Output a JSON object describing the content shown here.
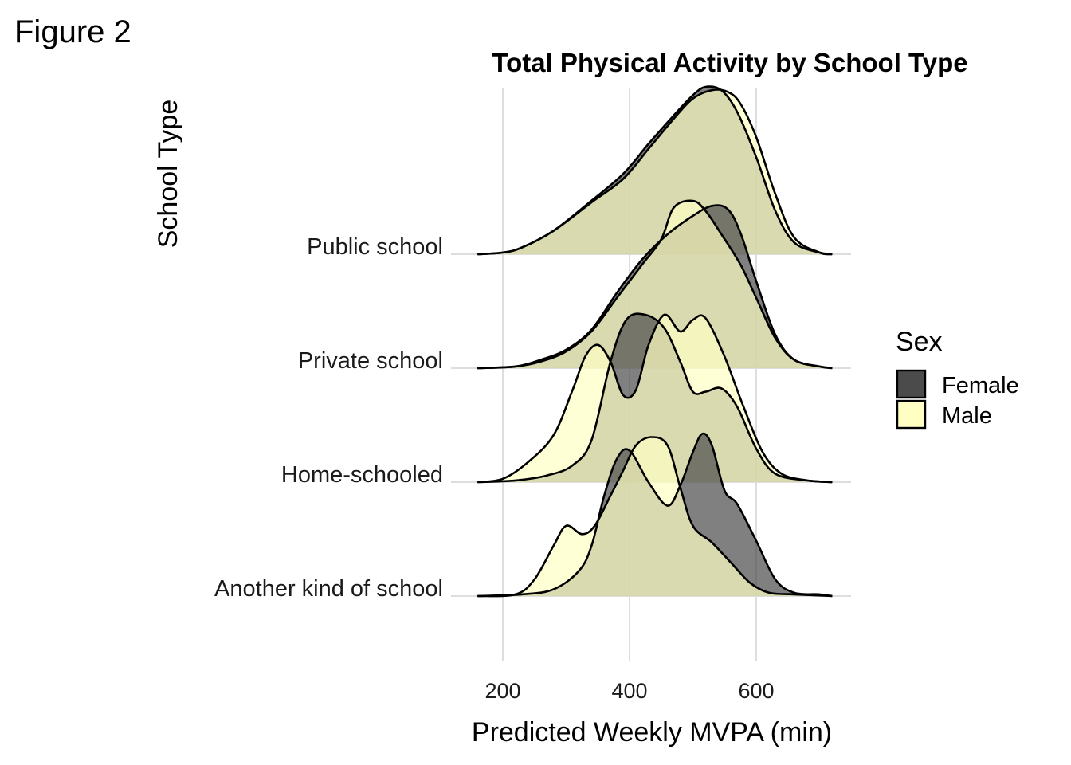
{
  "figure_label": "Figure 2",
  "chart_data": {
    "type": "ridgeline",
    "title": "Total Physical Activity by School Type",
    "xlabel": "Predicted Weekly MVPA (min)",
    "ylabel": "School Type",
    "xlim": [
      150,
      730
    ],
    "x_ticks": [
      200,
      400,
      600
    ],
    "grid": true,
    "legend": {
      "title": "Sex",
      "position": "right"
    },
    "colors": {
      "Female": "#4b4b4b",
      "Male": "#ffffc4",
      "overlap": "#c4c896",
      "line": "#000000"
    },
    "categories": [
      "Public school",
      "Private school",
      "Home-schooled",
      "Another kind of school"
    ],
    "series": [
      {
        "name": "Female",
        "curves": {
          "Public school": [
            [
              160,
              0
            ],
            [
              200,
              0.01
            ],
            [
              230,
              0.04
            ],
            [
              280,
              0.14
            ],
            [
              340,
              0.32
            ],
            [
              390,
              0.48
            ],
            [
              430,
              0.66
            ],
            [
              470,
              0.83
            ],
            [
              500,
              0.95
            ],
            [
              520,
              1.0
            ],
            [
              545,
              0.98
            ],
            [
              570,
              0.85
            ],
            [
              600,
              0.58
            ],
            [
              630,
              0.26
            ],
            [
              660,
              0.07
            ],
            [
              700,
              0.01
            ],
            [
              720,
              0
            ]
          ],
          "Private school": [
            [
              160,
              0
            ],
            [
              220,
              0.01
            ],
            [
              260,
              0.05
            ],
            [
              300,
              0.11
            ],
            [
              340,
              0.23
            ],
            [
              380,
              0.45
            ],
            [
              420,
              0.65
            ],
            [
              460,
              0.8
            ],
            [
              500,
              0.91
            ],
            [
              530,
              0.97
            ],
            [
              555,
              0.95
            ],
            [
              575,
              0.81
            ],
            [
              600,
              0.52
            ],
            [
              630,
              0.2
            ],
            [
              660,
              0.05
            ],
            [
              700,
              0.01
            ],
            [
              720,
              0
            ]
          ],
          "Home-schooled": [
            [
              160,
              0
            ],
            [
              220,
              0.01
            ],
            [
              270,
              0.04
            ],
            [
              310,
              0.1
            ],
            [
              340,
              0.25
            ],
            [
              370,
              0.72
            ],
            [
              395,
              0.97
            ],
            [
              425,
              1.0
            ],
            [
              455,
              0.92
            ],
            [
              480,
              0.72
            ],
            [
              500,
              0.54
            ],
            [
              520,
              0.54
            ],
            [
              545,
              0.56
            ],
            [
              570,
              0.45
            ],
            [
              600,
              0.2
            ],
            [
              630,
              0.05
            ],
            [
              680,
              0.01
            ],
            [
              720,
              0
            ]
          ],
          "Another kind of school": [
            [
              160,
              0
            ],
            [
              230,
              0.01
            ],
            [
              280,
              0.04
            ],
            [
              320,
              0.15
            ],
            [
              340,
              0.3
            ],
            [
              360,
              0.6
            ],
            [
              380,
              0.82
            ],
            [
              400,
              0.87
            ],
            [
              430,
              0.68
            ],
            [
              460,
              0.54
            ],
            [
              480,
              0.66
            ],
            [
              500,
              0.86
            ],
            [
              515,
              0.97
            ],
            [
              530,
              0.9
            ],
            [
              550,
              0.63
            ],
            [
              570,
              0.55
            ],
            [
              600,
              0.33
            ],
            [
              630,
              0.1
            ],
            [
              660,
              0.02
            ],
            [
              700,
              0.01
            ],
            [
              720,
              0
            ]
          ]
        }
      },
      {
        "name": "Male",
        "curves": {
          "Public school": [
            [
              160,
              0
            ],
            [
              200,
              0.01
            ],
            [
              230,
              0.04
            ],
            [
              280,
              0.14
            ],
            [
              340,
              0.31
            ],
            [
              390,
              0.45
            ],
            [
              430,
              0.63
            ],
            [
              470,
              0.81
            ],
            [
              500,
              0.93
            ],
            [
              530,
              0.98
            ],
            [
              555,
              0.97
            ],
            [
              575,
              0.9
            ],
            [
              600,
              0.7
            ],
            [
              630,
              0.36
            ],
            [
              660,
              0.1
            ],
            [
              700,
              0.01
            ],
            [
              720,
              0
            ]
          ],
          "Private school": [
            [
              160,
              0
            ],
            [
              220,
              0.01
            ],
            [
              260,
              0.04
            ],
            [
              300,
              0.1
            ],
            [
              340,
              0.22
            ],
            [
              380,
              0.42
            ],
            [
              420,
              0.62
            ],
            [
              450,
              0.77
            ],
            [
              470,
              0.96
            ],
            [
              500,
              1.0
            ],
            [
              520,
              0.94
            ],
            [
              545,
              0.8
            ],
            [
              575,
              0.62
            ],
            [
              600,
              0.42
            ],
            [
              630,
              0.18
            ],
            [
              660,
              0.05
            ],
            [
              700,
              0.01
            ],
            [
              720,
              0
            ]
          ],
          "Home-schooled": [
            [
              160,
              0
            ],
            [
              200,
              0.02
            ],
            [
              240,
              0.12
            ],
            [
              280,
              0.28
            ],
            [
              310,
              0.55
            ],
            [
              330,
              0.75
            ],
            [
              350,
              0.82
            ],
            [
              370,
              0.72
            ],
            [
              390,
              0.52
            ],
            [
              410,
              0.55
            ],
            [
              430,
              0.82
            ],
            [
              455,
              1.0
            ],
            [
              480,
              0.9
            ],
            [
              500,
              0.97
            ],
            [
              520,
              0.98
            ],
            [
              550,
              0.75
            ],
            [
              580,
              0.45
            ],
            [
              610,
              0.18
            ],
            [
              640,
              0.05
            ],
            [
              680,
              0.01
            ],
            [
              720,
              0
            ]
          ],
          "Another kind of school": [
            [
              160,
              0
            ],
            [
              220,
              0.01
            ],
            [
              250,
              0.1
            ],
            [
              280,
              0.3
            ],
            [
              300,
              0.42
            ],
            [
              325,
              0.37
            ],
            [
              345,
              0.42
            ],
            [
              370,
              0.6
            ],
            [
              390,
              0.75
            ],
            [
              410,
              0.9
            ],
            [
              435,
              0.95
            ],
            [
              460,
              0.9
            ],
            [
              480,
              0.65
            ],
            [
              500,
              0.42
            ],
            [
              530,
              0.32
            ],
            [
              560,
              0.2
            ],
            [
              590,
              0.08
            ],
            [
              620,
              0.02
            ],
            [
              660,
              0.01
            ],
            [
              720,
              0
            ]
          ]
        }
      }
    ]
  }
}
